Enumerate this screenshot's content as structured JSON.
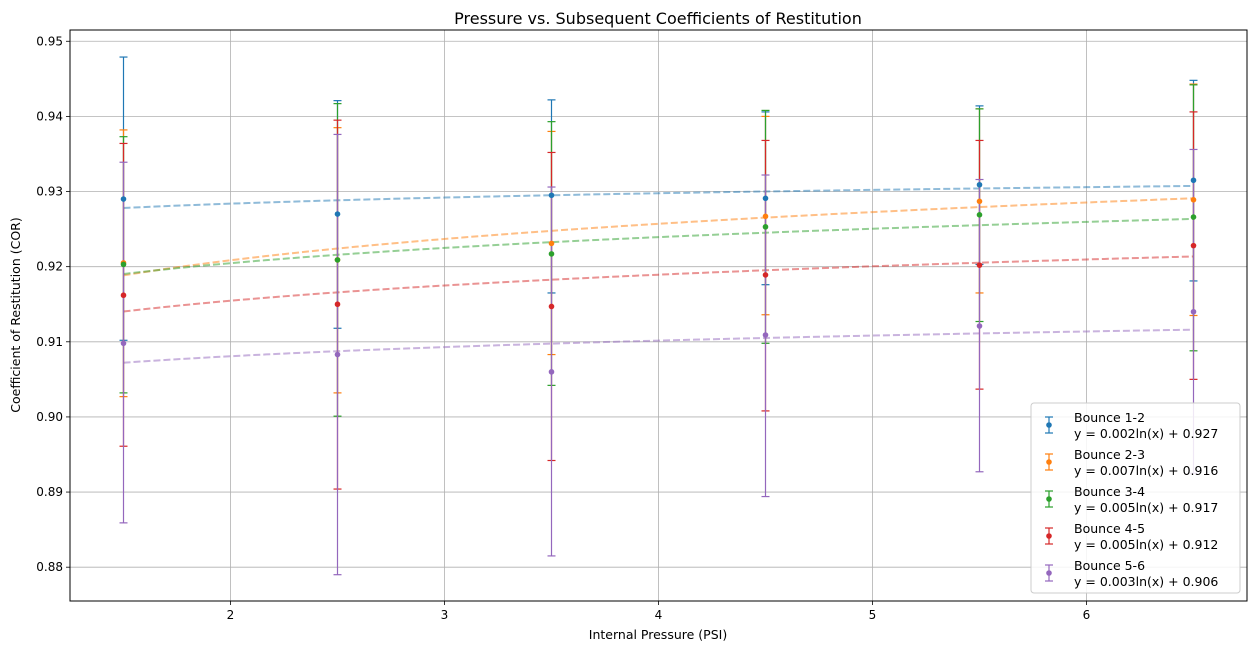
{
  "chart_data": {
    "type": "scatter",
    "title": "Pressure vs. Subsequent Coefficients of Restitution",
    "xlabel": "Internal Pressure (PSI)",
    "ylabel": "Coefficient of Restitution (COR)",
    "xlim": [
      1.25,
      6.75
    ],
    "ylim": [
      0.8755,
      0.9515
    ],
    "xticks": [
      2,
      3,
      4,
      5,
      6
    ],
    "yticks": [
      0.88,
      0.89,
      0.9,
      0.91,
      0.92,
      0.93,
      0.94,
      0.95
    ],
    "grid": true,
    "legend_position": "lower right",
    "x": [
      1.5,
      2.5,
      3.5,
      4.5,
      5.5,
      6.5
    ],
    "series": [
      {
        "name": "Bounce 1-2",
        "fit_label": "y = 0.002ln(x) + 0.927",
        "fit": {
          "a": 0.002,
          "b": 0.927
        },
        "color": "#1f77b4",
        "y": [
          0.929,
          0.927,
          0.9295,
          0.9291,
          0.9309,
          0.9315
        ],
        "err_low": [
          0.9102,
          0.9118,
          0.9165,
          0.9176,
          0.9203,
          0.9181
        ],
        "err_high": [
          0.9479,
          0.9421,
          0.9422,
          0.9406,
          0.9414,
          0.9448
        ]
      },
      {
        "name": "Bounce 2-3",
        "fit_label": "y = 0.007ln(x) + 0.916",
        "fit": {
          "a": 0.007,
          "b": 0.916
        },
        "color": "#ff7f0e",
        "y": [
          0.9205,
          0.9209,
          0.9231,
          0.9267,
          0.9287,
          0.9289
        ],
        "err_low": [
          0.9027,
          0.9032,
          0.9083,
          0.9136,
          0.9165,
          0.9135
        ],
        "err_high": [
          0.9382,
          0.9385,
          0.938,
          0.94,
          0.941,
          0.9443
        ]
      },
      {
        "name": "Bounce 3-4",
        "fit_label": "y = 0.005ln(x) + 0.917",
        "fit": {
          "a": 0.005,
          "b": 0.917
        },
        "color": "#2ca02c",
        "y": [
          0.9203,
          0.9209,
          0.9217,
          0.9253,
          0.9269,
          0.9266
        ],
        "err_low": [
          0.9032,
          0.9001,
          0.9042,
          0.9098,
          0.9127,
          0.9088
        ],
        "err_high": [
          0.9373,
          0.9417,
          0.9393,
          0.9408,
          0.941,
          0.9442
        ]
      },
      {
        "name": "Bounce 4-5",
        "fit_label": "y = 0.005ln(x) + 0.912",
        "fit": {
          "a": 0.005,
          "b": 0.912
        },
        "color": "#d62728",
        "y": [
          0.9162,
          0.915,
          0.9147,
          0.9189,
          0.9202,
          0.9228
        ],
        "err_low": [
          0.8961,
          0.8904,
          0.8942,
          0.9008,
          0.9037,
          0.905
        ],
        "err_high": [
          0.9364,
          0.9395,
          0.9352,
          0.9368,
          0.9368,
          0.9406
        ]
      },
      {
        "name": "Bounce 5-6",
        "fit_label": "y = 0.003ln(x) + 0.906",
        "fit": {
          "a": 0.003,
          "b": 0.906
        },
        "color": "#9467bd",
        "y": [
          0.9098,
          0.9083,
          0.906,
          0.9109,
          0.9121,
          0.914
        ],
        "err_low": [
          0.8859,
          0.879,
          0.8815,
          0.8894,
          0.8927,
          0.8925
        ],
        "err_high": [
          0.9339,
          0.9376,
          0.9306,
          0.9322,
          0.9316,
          0.9356
        ]
      }
    ]
  }
}
